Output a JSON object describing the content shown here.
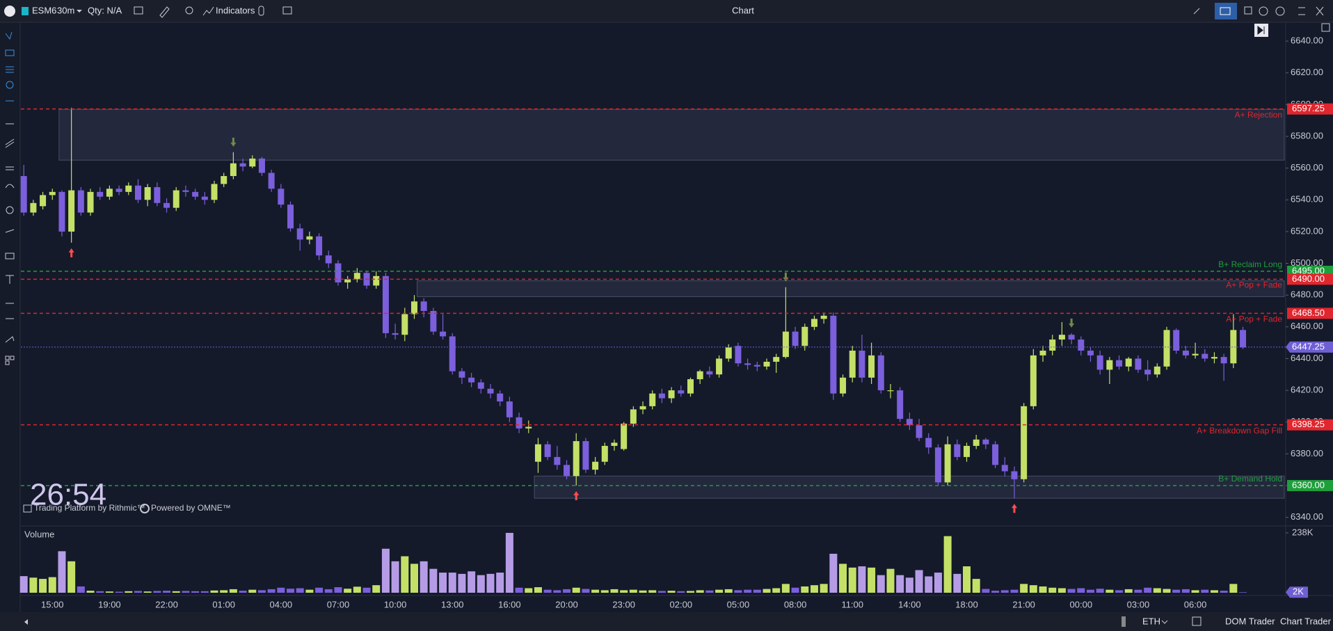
{
  "toolbar": {
    "symbol": "ESM6",
    "interval": "30m",
    "qty": "Qty: N/A",
    "indicators": "Indicators",
    "title": "Chart"
  },
  "overlay": {
    "timer": "26:54",
    "rithmic": "Trading Platform by Rithmic™",
    "omne": "Powered by OMNE™"
  },
  "bottom_bar": {
    "session": "ETH",
    "dom": "DOM Trader",
    "chart_trader": "Chart Trader"
  },
  "chart_data": [
    {
      "type": "candlestick",
      "up_color": "#c4e067",
      "down_color": "#7b5fdc",
      "categories": [
        null,
        null,
        null,
        "15:00",
        null,
        null,
        null,
        null,
        null,
        "19:00",
        null,
        null,
        null,
        null,
        null,
        "22:00",
        null,
        null,
        null,
        null,
        null,
        "01:00",
        null,
        null,
        null,
        null,
        null,
        "04:00",
        null,
        null,
        null,
        null,
        null,
        "07:00",
        null,
        null,
        null,
        null,
        null,
        "10:00",
        null,
        null,
        null,
        null,
        null,
        "13:00",
        null,
        null,
        null,
        null,
        null,
        "16:00",
        null,
        null,
        null,
        null,
        null,
        "20:00",
        null,
        null,
        null,
        null,
        null,
        "23:00",
        null,
        null,
        null,
        null,
        null,
        "02:00",
        null,
        null,
        null,
        null,
        null,
        "05:00",
        null,
        null,
        null,
        null,
        null,
        "08:00",
        null,
        null,
        null,
        null,
        null,
        "11:00",
        null,
        null,
        null,
        null,
        null,
        "14:00",
        null,
        null,
        null,
        null,
        null,
        "18:00",
        null,
        null,
        null,
        null,
        null,
        "21:00",
        null,
        null,
        null,
        null,
        null,
        "00:00",
        null,
        null,
        null,
        null,
        null,
        "03:00",
        null,
        null,
        null,
        null,
        null,
        "06:00",
        null,
        null,
        null,
        null,
        null
      ],
      "open": [
        6555,
        6532,
        6536,
        6543,
        6545,
        6520,
        6546,
        6532,
        6545,
        6542,
        6547,
        6545,
        6549,
        6540,
        6548,
        6538,
        6535,
        6546,
        6545,
        6542,
        6540,
        6550,
        6555,
        6563,
        6561,
        6566,
        6557,
        6547,
        6537,
        6522,
        6515,
        6517,
        6505,
        6500,
        6488,
        6490,
        6494,
        6486,
        6492,
        6456,
        6455,
        6468,
        6476,
        6470,
        6457,
        6454,
        6432,
        6428,
        6425,
        6421,
        6418,
        6413,
        6403,
        6396,
        6375,
        6386,
        6378,
        6373,
        6366,
        6388,
        6370,
        6375,
        6385,
        6383,
        6399,
        6408,
        6410,
        6418,
        6415,
        6420,
        6418,
        6427,
        6432,
        6430,
        6440,
        6448,
        6437,
        6436,
        6435,
        6438,
        6441,
        6457,
        6448,
        6460,
        6465,
        6467,
        6418,
        6428,
        6445,
        6428,
        6442,
        6420,
        6420,
        6402,
        6398,
        6390,
        6384,
        6362,
        6386,
        6378,
        6385,
        6389,
        6386,
        6373,
        6369,
        6364,
        6410,
        6442,
        6445,
        6452,
        6455,
        6452,
        6445,
        6442,
        6433,
        6439,
        6435,
        6440,
        6433,
        6430,
        6435,
        6458,
        6445,
        6442,
        6443,
        6440,
        6441,
        6437,
        6458
      ],
      "high": [
        6562,
        6540,
        6545,
        6547,
        6546,
        6598,
        6548,
        6547,
        6548,
        6549,
        6549,
        6551,
        6553,
        6550,
        6551,
        6541,
        6548,
        6549,
        6547,
        6545,
        6552,
        6557,
        6570,
        6566,
        6568,
        6567,
        6559,
        6550,
        6539,
        6525,
        6520,
        6519,
        6508,
        6502,
        6492,
        6497,
        6495,
        6495,
        6494,
        6462,
        6472,
        6480,
        6478,
        6472,
        6468,
        6456,
        6434,
        6431,
        6427,
        6424,
        6420,
        6416,
        6406,
        6401,
        6390,
        6388,
        6385,
        6376,
        6393,
        6390,
        6378,
        6387,
        6389,
        6400,
        6410,
        6413,
        6420,
        6421,
        6422,
        6423,
        6428,
        6433,
        6435,
        6442,
        6449,
        6450,
        6440,
        6438,
        6440,
        6443,
        6485,
        6460,
        6462,
        6467,
        6469,
        6469,
        6430,
        6448,
        6455,
        6450,
        6444,
        6424,
        6422,
        6406,
        6402,
        6393,
        6386,
        6391,
        6389,
        6387,
        6392,
        6390,
        6388,
        6378,
        6372,
        6412,
        6446,
        6448,
        6455,
        6463,
        6456,
        6454,
        6447,
        6445,
        6441,
        6442,
        6441,
        6442,
        6439,
        6437,
        6460,
        6459,
        6448,
        6450,
        6446,
        6444,
        6443,
        6468,
        6460
      ],
      "low": [
        6530,
        6530,
        6534,
        6540,
        6517,
        6513,
        6530,
        6530,
        6540,
        6540,
        6543,
        6543,
        6538,
        6536,
        6536,
        6532,
        6533,
        6542,
        6540,
        6537,
        6538,
        6548,
        6553,
        6558,
        6560,
        6555,
        6545,
        6535,
        6520,
        6508,
        6512,
        6502,
        6497,
        6486,
        6484,
        6488,
        6484,
        6484,
        6453,
        6452,
        6451,
        6465,
        6466,
        6455,
        6452,
        6430,
        6424,
        6422,
        6418,
        6415,
        6410,
        6400,
        6393,
        6393,
        6368,
        6376,
        6370,
        6364,
        6360,
        6368,
        6367,
        6373,
        6382,
        6382,
        6397,
        6405,
        6408,
        6412,
        6412,
        6416,
        6416,
        6424,
        6428,
        6428,
        6438,
        6435,
        6433,
        6432,
        6433,
        6431,
        6440,
        6446,
        6445,
        6458,
        6462,
        6414,
        6416,
        6425,
        6425,
        6424,
        6418,
        6415,
        6400,
        6395,
        6388,
        6380,
        6360,
        6360,
        6376,
        6375,
        6383,
        6383,
        6371,
        6366,
        6352,
        6362,
        6408,
        6438,
        6442,
        6448,
        6449,
        6442,
        6438,
        6430,
        6424,
        6433,
        6432,
        6431,
        6426,
        6428,
        6433,
        6443,
        6440,
        6440,
        6438,
        6437,
        6426,
        6434,
        6446
      ],
      "close": [
        6532,
        6538,
        6543,
        6545,
        6520,
        6546,
        6532,
        6545,
        6542,
        6547,
        6545,
        6549,
        6540,
        6548,
        6538,
        6535,
        6546,
        6545,
        6542,
        6540,
        6550,
        6555,
        6563,
        6561,
        6566,
        6557,
        6547,
        6537,
        6522,
        6515,
        6517,
        6505,
        6500,
        6488,
        6490,
        6494,
        6486,
        6492,
        6456,
        6455,
        6468,
        6476,
        6470,
        6457,
        6454,
        6432,
        6428,
        6425,
        6421,
        6418,
        6413,
        6403,
        6396,
        6397,
        6386,
        6378,
        6373,
        6366,
        6388,
        6370,
        6375,
        6385,
        6387,
        6399,
        6408,
        6410,
        6418,
        6415,
        6420,
        6418,
        6427,
        6432,
        6430,
        6440,
        6447,
        6437,
        6436,
        6435,
        6438,
        6441,
        6457,
        6448,
        6460,
        6465,
        6467,
        6418,
        6428,
        6445,
        6428,
        6442,
        6420,
        6420,
        6402,
        6398,
        6390,
        6384,
        6362,
        6386,
        6378,
        6385,
        6389,
        6386,
        6373,
        6369,
        6364,
        6410,
        6442,
        6445,
        6452,
        6455,
        6452,
        6445,
        6442,
        6433,
        6439,
        6435,
        6440,
        6433,
        6430,
        6435,
        6458,
        6445,
        6442,
        6443,
        6440,
        6441,
        6437,
        6458,
        6447
      ],
      "ylim": [
        6335,
        6651
      ],
      "yticks": [
        {
          "value": 6340,
          "label": "6340.00"
        },
        {
          "value": 6360,
          "label": "6360.00"
        },
        {
          "value": 6380,
          "label": "6380.00"
        },
        {
          "value": 6400,
          "label": "6400.00"
        },
        {
          "value": 6420,
          "label": "6420.00"
        },
        {
          "value": 6440,
          "label": "6440.00"
        },
        {
          "value": 6460,
          "label": "6460.00"
        },
        {
          "value": 6480,
          "label": "6480.00"
        },
        {
          "value": 6500,
          "label": "6500.00"
        },
        {
          "value": 6520,
          "label": "6520.00"
        },
        {
          "value": 6540,
          "label": "6540.00"
        },
        {
          "value": 6560,
          "label": "6560.00"
        },
        {
          "value": 6580,
          "label": "6580.00"
        },
        {
          "value": 6600,
          "label": "6600.00"
        },
        {
          "value": 6620,
          "label": "6620.00"
        },
        {
          "value": 6640,
          "label": "6640.00"
        }
      ],
      "levels": [
        {
          "name": "A+ Rejection",
          "value": 6597.25,
          "value_label": "6597.25",
          "color": "#e0262e"
        },
        {
          "name": "B+ Reclaim Long",
          "value": 6495,
          "value_label": "6495.00",
          "color": "#1f9e3c"
        },
        {
          "name": "A+ Pop + Fade",
          "value": 6490,
          "value_label": "6490.00",
          "color": "#e0262e"
        },
        {
          "name": "A+ Pop + Fade",
          "value": 6468.5,
          "value_label": "6468.50",
          "color": "#e0262e"
        },
        {
          "name": "A+ Breakdown  Gap Fill",
          "value": 6398.25,
          "value_label": "6398.25",
          "color": "#e0262e"
        },
        {
          "name": "B+ Demand Hold",
          "value": 6360,
          "value_label": "6360.00",
          "color": "#1f9e3c"
        }
      ],
      "zones": [
        {
          "top": 6597,
          "bottom": 6565
        },
        {
          "top": 6489,
          "bottom": 6479
        },
        {
          "top": 6366,
          "bottom": 6352
        }
      ],
      "last_price": {
        "value": 6447.25,
        "label": "6447.25",
        "color": "#6f5fd4"
      }
    },
    {
      "type": "bar",
      "title": "Volume",
      "color": "#6f5fd4",
      "values": [
        66000,
        60000,
        55000,
        62000,
        165000,
        125000,
        25000,
        8000,
        6000,
        5000,
        4000,
        6000,
        7000,
        5000,
        7000,
        8000,
        6000,
        7000,
        6000,
        6000,
        9000,
        10000,
        14000,
        8000,
        12000,
        10000,
        14000,
        20000,
        16000,
        18000,
        12000,
        20000,
        14000,
        22000,
        16000,
        24000,
        20000,
        30000,
        175000,
        125000,
        145000,
        115000,
        125000,
        95000,
        80000,
        80000,
        75000,
        85000,
        70000,
        75000,
        80000,
        238000,
        20000,
        18000,
        22000,
        12000,
        10000,
        14000,
        20000,
        15000,
        12000,
        10000,
        14000,
        10000,
        12000,
        9000,
        10000,
        7000,
        8000,
        6000,
        7000,
        10000,
        9000,
        12000,
        14000,
        10000,
        12000,
        12000,
        15000,
        18000,
        35000,
        20000,
        25000,
        30000,
        35000,
        155000,
        115000,
        100000,
        105000,
        100000,
        70000,
        95000,
        70000,
        60000,
        90000,
        65000,
        80000,
        225000,
        75000,
        105000,
        55000,
        15000,
        8000,
        10000,
        12000,
        35000,
        30000,
        25000,
        20000,
        18000,
        15000,
        18000,
        12000,
        16000,
        12000,
        10000,
        14000,
        12000,
        20000,
        18000,
        15000,
        12000,
        14000,
        10000,
        12000,
        10000,
        8000,
        35000,
        2000
      ],
      "value_labels": [
        null,
        null,
        null,
        null,
        null,
        null,
        null,
        null,
        null,
        null,
        null,
        null,
        null,
        null,
        null,
        null,
        null,
        null,
        null,
        null,
        null,
        null,
        null,
        null,
        null,
        null,
        null,
        null,
        null,
        null,
        null,
        null,
        null,
        null,
        null,
        null,
        null,
        null,
        null,
        null,
        null,
        null,
        null,
        null,
        null,
        null,
        null,
        null,
        null,
        null,
        null,
        null,
        null,
        null,
        null,
        null,
        null,
        null,
        null,
        null,
        null,
        null,
        null,
        null,
        null,
        null,
        null,
        null,
        null,
        null,
        null,
        null,
        null,
        null,
        null,
        null,
        null,
        null,
        null,
        null,
        null,
        null,
        null,
        null,
        null,
        null,
        null,
        null,
        null,
        null,
        null,
        null,
        null,
        null,
        null,
        null,
        null,
        null,
        null,
        null,
        null,
        null,
        null,
        null,
        null,
        null,
        null,
        null,
        null,
        null,
        null,
        null,
        null,
        null,
        null,
        null,
        null,
        null,
        null,
        null,
        null,
        null,
        null,
        null,
        null,
        null,
        null,
        null,
        "2K"
      ],
      "ylim": [
        0,
        260000
      ],
      "yticks": [
        {
          "value": 238000,
          "label": "238K"
        }
      ]
    }
  ]
}
